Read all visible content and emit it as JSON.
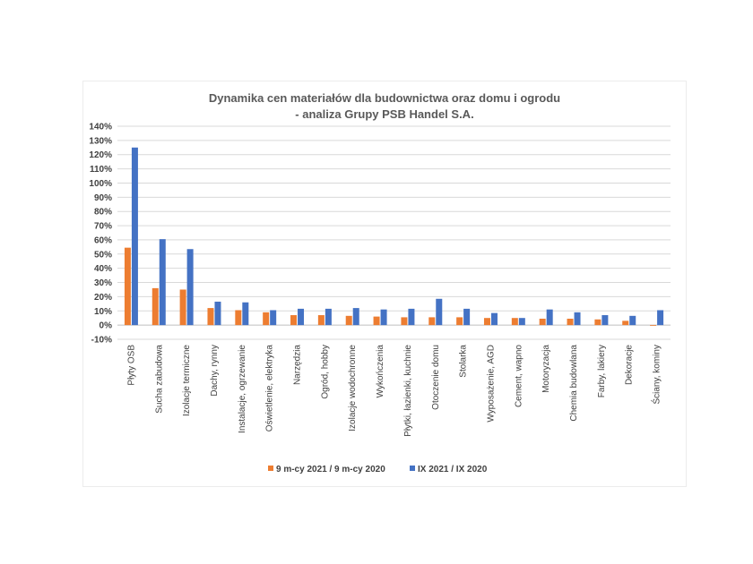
{
  "chart_data": {
    "type": "bar",
    "title": [
      "Dynamika cen materiałów dla budownictwa oraz domu i ogrodu",
      "- analiza Grupy PSB Handel S.A."
    ],
    "xlabel": "",
    "ylabel": "",
    "ylim": [
      -10,
      140
    ],
    "yticks": [
      -10,
      0,
      10,
      20,
      30,
      40,
      50,
      60,
      70,
      80,
      90,
      100,
      110,
      120,
      130,
      140
    ],
    "tick_suffix": "%",
    "grid": true,
    "legend_position": "bottom",
    "categories": [
      "Płyty OSB",
      "Sucha zabudowa",
      "Izolacje termiczne",
      "Dachy, rynny",
      "Instalacje, ogrzewanie",
      "Oświetlenie, elektryka",
      "Narzędzia",
      "Ogród, hobby",
      "Izolacje wodochronne",
      "Wykończenia",
      "Płytki, łazienki, kuchnie",
      "Otoczenie domu",
      "Stolarka",
      "Wyposażenie, AGD",
      "Cement, wapno",
      "Motoryzacja",
      "Chemia budowlana",
      "Farby, lakiery",
      "Dekoracje",
      "Ściany, kominy"
    ],
    "series": [
      {
        "name": "9 m-cy 2021 / 9 m-cy 2020",
        "color": "#ed7d31",
        "values": [
          54.5,
          26,
          25,
          12,
          10.5,
          9,
          7,
          7,
          6.5,
          6,
          5.5,
          5.5,
          5.5,
          5,
          5,
          4.5,
          4.5,
          4,
          3,
          -0.5
        ]
      },
      {
        "name": "IX 2021 / IX 2020",
        "color": "#4472c4",
        "values": [
          125,
          60.5,
          53.5,
          16.5,
          16,
          10.5,
          11.5,
          11.5,
          12,
          11,
          11.5,
          18.5,
          11.5,
          8.5,
          5,
          11,
          9,
          7,
          6.5,
          10.5
        ]
      }
    ]
  }
}
